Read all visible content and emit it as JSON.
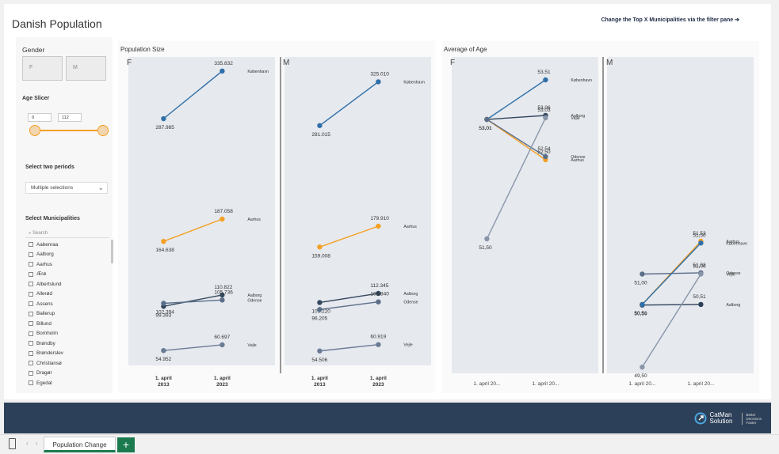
{
  "report": {
    "title": "Danish Population",
    "filter_hint": "Change the Top X Municipalities via the filter pane",
    "filter_hint_icon": "arrow-right-icon"
  },
  "sidebar": {
    "gender_label": "Gender",
    "gender_options": [
      "F",
      "M"
    ],
    "age_label": "Age Slicer",
    "age_min": "0",
    "age_max": "112",
    "periods_label": "Select two periods",
    "periods_value": "Multiple selections",
    "municipalities_label": "Select Municipalities",
    "search_placeholder": "Search",
    "municipalities": [
      "Aabenraa",
      "Aalborg",
      "Aarhus",
      "Ærø",
      "Albertslund",
      "Allerød",
      "Assens",
      "Ballerup",
      "Billund",
      "Bornholm",
      "Brøndby",
      "Brønderslev",
      "Christiansø",
      "Dragør",
      "Egedal"
    ]
  },
  "population": {
    "title": "Population Size",
    "panels": [
      {
        "gender": "F",
        "x_labels": [
          [
            "1. april",
            "2013"
          ],
          [
            "1. april",
            "2023"
          ]
        ]
      },
      {
        "gender": "M",
        "x_labels": [
          [
            "1. april",
            "2013"
          ],
          [
            "1. april",
            "2023"
          ]
        ]
      }
    ]
  },
  "age": {
    "title": "Average of Age",
    "panels": [
      {
        "gender": "F",
        "x_labels": [
          "1. april 20...",
          "1. april 20..."
        ]
      },
      {
        "gender": "M",
        "x_labels": [
          "1. april 20...",
          "1. april 20..."
        ]
      }
    ]
  },
  "chart_data": [
    {
      "type": "line",
      "title": "Population Size - F",
      "x": [
        "1. april 2013",
        "1. april 2023"
      ],
      "ylim": [
        40000,
        350000
      ],
      "series": [
        {
          "name": "København",
          "values": [
            287985,
            335832
          ],
          "labels": [
            "287.985",
            "335.832"
          ],
          "color": "#2f6fa8"
        },
        {
          "name": "Aarhus",
          "values": [
            164638,
            187058
          ],
          "labels": [
            "164.638",
            "187.058"
          ],
          "color": "#f4a024"
        },
        {
          "name": "Aalborg",
          "values": [
            99393,
            110822
          ],
          "labels": [
            "99.393",
            "110.822"
          ],
          "color": "#34495e"
        },
        {
          "name": "Odense",
          "values": [
            102394,
            105736
          ],
          "labels": [
            "102.394",
            "105.736"
          ],
          "color": "#5b6f8a"
        },
        {
          "name": "Vejle",
          "values": [
            54952,
            60697
          ],
          "labels": [
            "54.952",
            "60.697"
          ],
          "color": "#6b7c95"
        }
      ]
    },
    {
      "type": "line",
      "title": "Population Size - M",
      "x": [
        "1. april 2013",
        "1. april 2023"
      ],
      "ylim": [
        40000,
        350000
      ],
      "series": [
        {
          "name": "København",
          "values": [
            281015,
            325010
          ],
          "labels": [
            "281.015",
            "325.010"
          ],
          "color": "#2f6fa8"
        },
        {
          "name": "Aarhus",
          "values": [
            159008,
            179910
          ],
          "labels": [
            "159.008",
            "179.910"
          ],
          "color": "#f4a024"
        },
        {
          "name": "Aalborg",
          "values": [
            103220,
            112345
          ],
          "labels": [
            "103.220",
            "112.345"
          ],
          "color": "#34495e"
        },
        {
          "name": "Odense",
          "values": [
            96205,
            103840
          ],
          "labels": [
            "96.205",
            "103.840"
          ],
          "color": "#5b6f8a"
        },
        {
          "name": "Vejle",
          "values": [
            54506,
            60919
          ],
          "labels": [
            "54.506",
            "60.919"
          ],
          "color": "#6b7c95"
        }
      ]
    },
    {
      "type": "line",
      "title": "Average of Age - F",
      "x": [
        "1. april 20...",
        "1. april 20..."
      ],
      "ylim": [
        49.8,
        53.8
      ],
      "series": [
        {
          "name": "København",
          "values": [
            53.01,
            53.51
          ],
          "labels": [
            "53,01",
            "53,51"
          ],
          "color": "#2f6fa8"
        },
        {
          "name": "Aalborg",
          "values": [
            53.01,
            53.06
          ],
          "labels": [
            "53,01",
            "53,06"
          ],
          "color": "#34495e"
        },
        {
          "name": "Aarhus",
          "values": [
            53.01,
            52.5
          ],
          "labels": [
            "",
            "52,50"
          ],
          "color": "#f4a024"
        },
        {
          "name": "Odense",
          "values": [
            53.01,
            52.54
          ],
          "labels": [
            "",
            "52,54"
          ],
          "color": "#5b6f8a"
        },
        {
          "name": "Vejle",
          "values": [
            51.5,
            53.03
          ],
          "labels": [
            "51,50",
            "53,03"
          ],
          "color": "#8896a9"
        }
      ]
    },
    {
      "type": "line",
      "title": "Average of Age - M",
      "x": [
        "1. april 20...",
        "1. april 20..."
      ],
      "ylim": [
        49.4,
        54.5
      ],
      "series": [
        {
          "name": "Aarhus",
          "values": [
            50.51,
            51.53
          ],
          "labels": [
            "50,51",
            "51,53"
          ],
          "color": "#f4a024"
        },
        {
          "name": "Odense",
          "values": [
            51.0,
            51.02
          ],
          "labels": [
            "51,00",
            "51,02"
          ],
          "color": "#5b6f8a"
        },
        {
          "name": "Aalborg",
          "values": [
            50.5,
            50.51
          ],
          "labels": [
            "50,50",
            "50,51"
          ],
          "color": "#2d4059"
        },
        {
          "name": "København",
          "values": [
            50.51,
            51.5
          ],
          "labels": [
            "",
            "51,50"
          ],
          "color": "#2f6fa8"
        },
        {
          "name": "Vejle",
          "values": [
            49.5,
            51.0
          ],
          "labels": [
            "49,50",
            "51,00"
          ],
          "color": "#8896a9"
        }
      ]
    }
  ],
  "footer": {
    "brand": "CatMan Solution",
    "tagline": [
      "Better",
      "Decisions",
      "Faster"
    ],
    "logo_icon": "catman-logo-icon"
  },
  "tabs": {
    "active": "Population Change",
    "add_label": "+"
  }
}
